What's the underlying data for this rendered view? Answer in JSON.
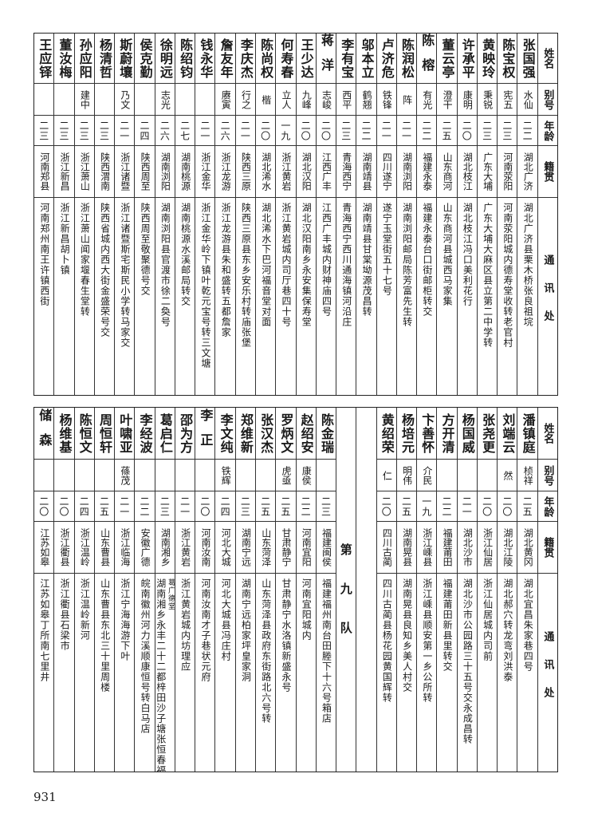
{
  "headers": {
    "name": "姓名",
    "alias": "别号",
    "age": "年龄",
    "origin": "籍贯",
    "address": "通讯处"
  },
  "top": {
    "rows": [
      {
        "name": "张国强",
        "alias": "水仙",
        "age": "二二",
        "origin": "湖北广济",
        "address": "湖北广济县栗木桥张良祖垸"
      },
      {
        "name": "陈宝权",
        "alias": "宪五",
        "age": "二三",
        "origin": "河南荥阳",
        "address": "河南荥阳城内德寿堂收转老官村"
      },
      {
        "name": "黄映玲",
        "alias": "秉锐",
        "age": "二三",
        "origin": "广东大埔",
        "address": "广东大埔大麻区县立第二中学转"
      },
      {
        "name": "许承平",
        "alias": "康明",
        "age": "二〇",
        "origin": "湖北枝江",
        "address": "湖北枝江冯口美利花行"
      },
      {
        "name": "董云亭",
        "alias": "澄干",
        "age": "二五",
        "origin": "山东商河",
        "address": "山东商河县城西马家集"
      },
      {
        "name": "陈榕",
        "alias": "有光",
        "age": "二二",
        "origin": "福建永泰",
        "address": "福建永泰台口街邮柜转交"
      },
      {
        "name": "陈润松",
        "alias": "阵",
        "age": "二一",
        "origin": "湖南浏阳",
        "address": "湖南浏阳邮局陈芳富先生转"
      },
      {
        "name": "卢济危",
        "alias": "铁锋",
        "age": "二一",
        "origin": "四川遂宁",
        "address": "遂宁玉堂街五十七号"
      },
      {
        "name": "邬本立",
        "alias": "鹤翘",
        "age": "二二",
        "origin": "湖南靖县",
        "address": "湖南靖县甘棠坳源茂昌转"
      },
      {
        "name": "李有宝",
        "alias": "西平",
        "age": "二三",
        "origin": "青海西宁",
        "address": "青海西宁西川通海镇河沿庄"
      },
      {
        "name": "蒋洋",
        "alias": "志峻",
        "age": "二〇",
        "origin": "江西广丰",
        "address": "江西广丰城内财神庙四号"
      },
      {
        "name": "王少达",
        "alias": "九峰",
        "age": "二〇",
        "origin": "湖北汉阳",
        "address": "湖北汉阳南乡永安集保寿堂"
      },
      {
        "name": "何寿春",
        "alias": "立人",
        "age": "一九",
        "origin": "浙江黄岩",
        "address": "浙江黄岩城内司厅巷四十号"
      },
      {
        "name": "陈尚权",
        "alias": "楷",
        "age": "二〇",
        "origin": "湖北浠水",
        "address": "湖北浠水下巴河福音堂对面"
      },
      {
        "name": "李庆杰",
        "alias": "行之",
        "age": "二一",
        "origin": "陕西三原",
        "address": "陕西三原县东乡安乐村转庙张堡"
      },
      {
        "name": "詹友年",
        "alias": "赓寅",
        "age": "二六",
        "origin": "浙江龙游",
        "address": "浙江龙游县朱和盛转五都詹家"
      },
      {
        "name": "钱永华",
        "alias": "",
        "age": "二一",
        "origin": "浙江金华",
        "address": "浙江金华岭下镇叶乾元宝号转三文塘"
      },
      {
        "name": "陈绍钧",
        "alias": "",
        "age": "二七",
        "origin": "湖南桃源",
        "address": "湖南桃源水溪邮局转交"
      },
      {
        "name": "徐明远",
        "alias": "志光",
        "age": "二六",
        "origin": "湖南浏阳",
        "address": "湖南浏阳县官渡市徐二奐号"
      },
      {
        "name": "侯克勤",
        "alias": "",
        "age": "二四",
        "origin": "陕西周至",
        "address": "陕西周至敬聚德号交"
      },
      {
        "name": "斯蔚壤",
        "alias": "乃文",
        "age": "二一",
        "origin": "浙江诸暨",
        "address": "浙江诸暨斯宅斯民小学转马家交"
      },
      {
        "name": "杨清哲",
        "alias": "",
        "age": "二三",
        "origin": "陕西渭南",
        "address": "陕西省城内西大街金盛荣号交"
      },
      {
        "name": "孙应阳",
        "alias": "建中",
        "age": "二三",
        "origin": "浙江萧山",
        "address": "浙江萧山闻家堰春生堂转"
      },
      {
        "name": "董汝梅",
        "alias": "",
        "age": "二三",
        "origin": "浙江新昌",
        "address": "浙江新昌胡卜镇"
      },
      {
        "name": "王应铎",
        "alias": "",
        "age": "二三",
        "origin": "河南郑县",
        "address": "河南郑州南王许镇西街"
      }
    ]
  },
  "bottom": {
    "rows_right": [
      {
        "name": "潘镇庭",
        "alias": "桢祥",
        "age": "二五",
        "origin": "湖北黄冈",
        "address": "湖北宜昌朱家巷四号"
      },
      {
        "name": "刘端云",
        "alias": "然",
        "age": "二〇",
        "origin": "湖北江陵",
        "address": "湖北郝穴转龙弯刘洪泰"
      },
      {
        "name": "张尧更",
        "alias": "",
        "age": "二〇",
        "origin": "浙江仙居",
        "address": "浙江仙居城内司前"
      },
      {
        "name": "杨国威",
        "alias": "",
        "age": "二一",
        "origin": "湖北沙市",
        "address": "湖北沙市公园路三十五号交永成昌转"
      },
      {
        "name": "方开清",
        "alias": "",
        "age": "二二",
        "origin": "福建莆田",
        "address": "福建莆田新县里转交"
      },
      {
        "name": "卞善怀",
        "alias": "介民",
        "age": "一九",
        "origin": "浙江嵊县",
        "address": "浙江嵊县顺安第一乡公所转"
      },
      {
        "name": "杨培元",
        "alias": "明伟",
        "age": "二五",
        "origin": "湖南晃县",
        "address": "湖南晃县良知乡美人村交"
      },
      {
        "name": "黄绍荣",
        "alias": "仁",
        "age": "二〇",
        "origin": "四川古蔺",
        "address": "四川古蔺县杨花园黄国辉转"
      }
    ],
    "team_label": "第九队",
    "rows_left": [
      {
        "name": "陈金瑞",
        "alias": "",
        "age": "二三",
        "origin": "福建闽侯",
        "address": "福建福州南台田塍下十六号箱店"
      },
      {
        "name": "赵绍安",
        "alias": "康侯",
        "age": "二二",
        "origin": "河南宜阳",
        "address": "河南宜阳城内"
      },
      {
        "name": "罗炳文",
        "alias": "虎亟",
        "age": "二五",
        "origin": "甘肃静宁",
        "address": "甘肃静宁水洛镇新盛永号"
      },
      {
        "name": "张汉杰",
        "alias": "",
        "age": "二五",
        "origin": "山东菏泽",
        "address": "山东菏泽县政府东街路北六号转"
      },
      {
        "name": "郑维新",
        "alias": "",
        "age": "二三",
        "origin": "湖南宁远",
        "address": "湖南宁远柏家坪皇家洞"
      },
      {
        "name": "李文纯",
        "alias": "铁辉",
        "age": "二四",
        "origin": "河北大城",
        "address": "河北大城县冯庄村"
      },
      {
        "name": "李正",
        "alias": "",
        "age": "二〇",
        "origin": "河南汝南",
        "address": "河南汝南才子巷状元府"
      },
      {
        "name": "邵为方",
        "alias": "",
        "age": "二一",
        "origin": "浙江黄岩",
        "address": "浙江黄岩城内坊理应"
      },
      {
        "name": "葛启仁",
        "alias": "",
        "age": "二三",
        "origin": "湖南湘乡",
        "address": "湖南湘乡永丰二十二都梓田沙子塘张恒春福转",
        "address_note": "葛广德堂"
      },
      {
        "name": "李经波",
        "alias": "",
        "age": "二二",
        "origin": "安徽广德",
        "address": "皖南徽州河力溪顺康恒号转白马店"
      },
      {
        "name": "叶啸亚",
        "alias": "蓧茂",
        "age": "二一",
        "origin": "浙江临海",
        "address": "浙江宁海海游下叶"
      },
      {
        "name": "周恒轩",
        "alias": "",
        "age": "二五",
        "origin": "山东曹县",
        "address": "山东曹县东北三十里周楼"
      },
      {
        "name": "陈恒文",
        "alias": "",
        "age": "二四",
        "origin": "浙江温岭",
        "address": "浙江温岭新河"
      },
      {
        "name": "杨维基",
        "alias": "",
        "age": "二〇",
        "origin": "浙江衢县",
        "address": "浙江衢县石梁市"
      },
      {
        "name": "储森",
        "alias": "",
        "age": "二〇",
        "origin": "江苏如皋",
        "address": "江苏如皋丁所南七里井"
      }
    ]
  },
  "page_number": "931"
}
